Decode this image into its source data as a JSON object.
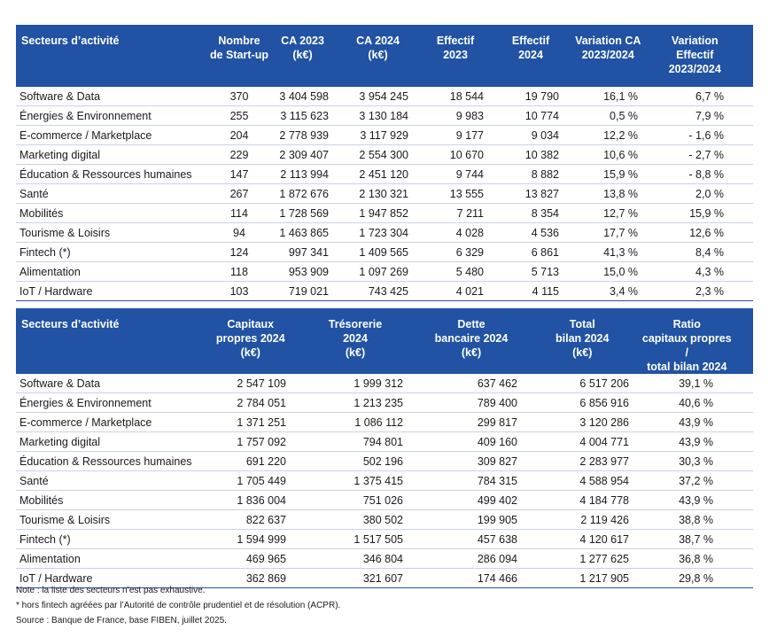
{
  "table1": {
    "header": [
      "Secteurs d’activité",
      "Nombre\nde Start-up",
      "CA 2023\n(k€)",
      "CA 2024\n(k€)",
      "Effectif\n2023",
      "Effectif\n2024",
      "Variation CA\n2023/2024",
      "Variation\nEffectif\n2023/2024"
    ],
    "rows": [
      [
        "Software & Data",
        "370",
        "3 404 598",
        "3 954 245",
        "18 544",
        "19 790",
        "16,1 %",
        "6,7 %"
      ],
      [
        "Énergies & Environnement",
        "255",
        "3 115 623",
        "3 130 184",
        "9 983",
        "10 774",
        "0,5 %",
        "7,9 %"
      ],
      [
        "E-commerce / Marketplace",
        "204",
        "2 778 939",
        "3 117 929",
        "9 177",
        "9 034",
        "12,2 %",
        "- 1,6 %"
      ],
      [
        "Marketing digital",
        "229",
        "2 309 407",
        "2 554 300",
        "10 670",
        "10 382",
        "10,6 %",
        "- 2,7 %"
      ],
      [
        "Éducation & Ressources humaines",
        "147",
        "2 113 994",
        "2 451 120",
        "9 744",
        "8 882",
        "15,9 %",
        "- 8,8 %"
      ],
      [
        "Santé",
        "267",
        "1 872 676",
        "2 130 321",
        "13 555",
        "13 827",
        "13,8 %",
        "2,0 %"
      ],
      [
        "Mobilités",
        "114",
        "1 728 569",
        "1 947 852",
        "7 211",
        "8 354",
        "12,7 %",
        "15,9 %"
      ],
      [
        "Tourisme & Loisirs",
        "94",
        "1 463 865",
        "1 723 304",
        "4 028",
        "4 536",
        "17,7 %",
        "12,6 %"
      ],
      [
        "Fintech (*)",
        "124",
        "997 341",
        "1 409 565",
        "6 329",
        "6 861",
        "41,3 %",
        "8,4 %"
      ],
      [
        "Alimentation",
        "118",
        "953 909",
        "1 097 269",
        "5 480",
        "5 713",
        "15,0 %",
        "4,3 %"
      ],
      [
        "IoT / Hardware",
        "103",
        "719 021",
        "743 425",
        "4 021",
        "4 115",
        "3,4 %",
        "2,3 %"
      ]
    ]
  },
  "table2": {
    "header": [
      "Secteurs d’activité",
      "Capitaux\npropres 2024\n(k€)",
      "Trésorerie\n2024\n(k€)",
      "Dette\nbancaire 2024\n(k€)",
      "Total\nbilan 2024\n(k€)",
      "Ratio\ncapitaux propres /\ntotal bilan 2024"
    ],
    "rows": [
      [
        "Software & Data",
        "2 547 109",
        "1 999 312",
        "637 462",
        "6 517 206",
        "39,1 %"
      ],
      [
        "Énergies & Environnement",
        "2 784 051",
        "1 213 235",
        "789 400",
        "6 856 916",
        "40,6 %"
      ],
      [
        "E-commerce / Marketplace",
        "1 371 251",
        "1 086 112",
        "299 817",
        "3 120 286",
        "43,9 %"
      ],
      [
        "Marketing digital",
        "1 757 092",
        "794 801",
        "409 160",
        "4 004 771",
        "43,9 %"
      ],
      [
        "Éducation & Ressources humaines",
        "691 220",
        "502 196",
        "309 827",
        "2 283 977",
        "30,3 %"
      ],
      [
        "Santé",
        "1 705 449",
        "1 375 415",
        "784 315",
        "4 588 954",
        "37,2 %"
      ],
      [
        "Mobilités",
        "1 836 004",
        "751 026",
        "499 402",
        "4 184 778",
        "43,9 %"
      ],
      [
        "Tourisme & Loisirs",
        "822 637",
        "380 502",
        "199 905",
        "2 119 426",
        "38,8 %"
      ],
      [
        "Fintech (*)",
        "1 594 999",
        "1 517 505",
        "457 638",
        "4 120 617",
        "38,7 %"
      ],
      [
        "Alimentation",
        "469 965",
        "346 804",
        "286 094",
        "1 277 625",
        "36,8 %"
      ],
      [
        "IoT / Hardware",
        "362 869",
        "321 607",
        "174 466",
        "1 217 905",
        "29,8 %"
      ]
    ]
  },
  "notes": [
    "Note : la liste des secteurs n’est pas exhaustive.",
    "*  hors fintech agréées par l’Autorité de contrôle prudentiel et de résolution (ACPR).",
    "Source : Banque de France, base FIBEN, juillet 2025."
  ]
}
